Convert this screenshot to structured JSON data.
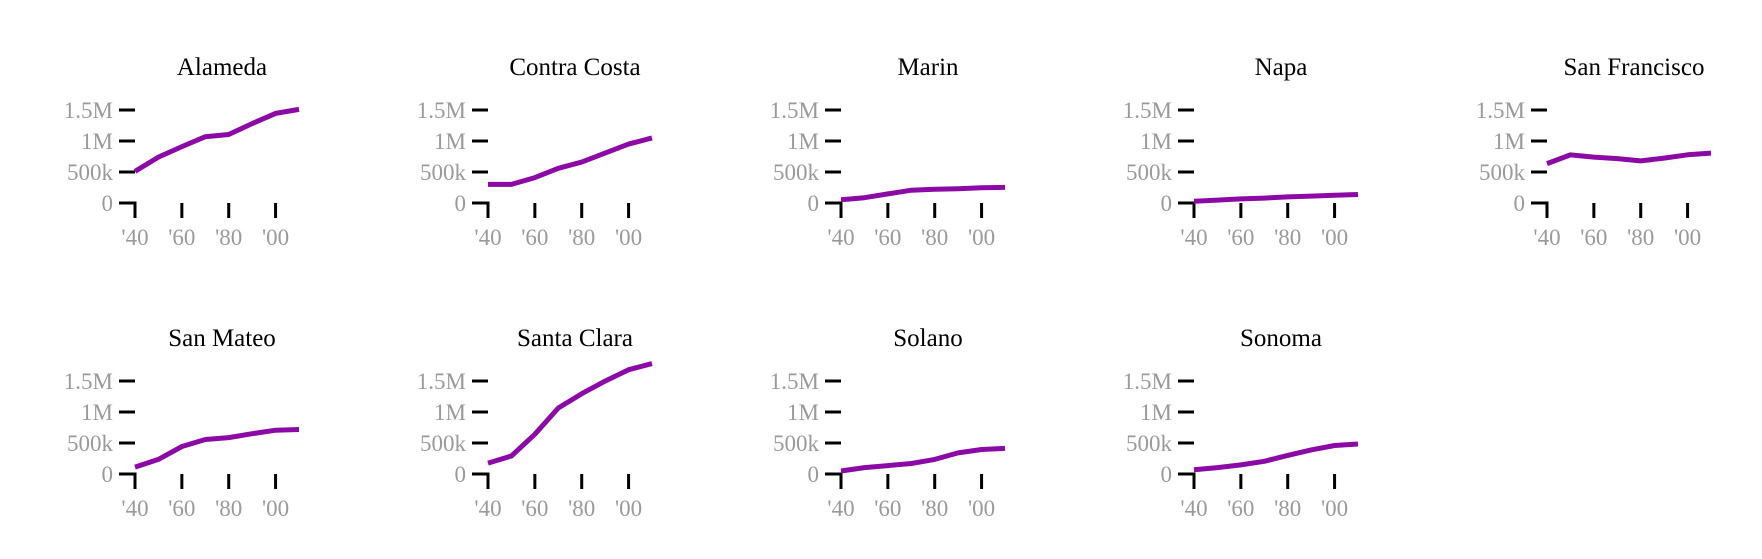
{
  "chart_data": {
    "type": "line",
    "style": "small-multiples",
    "line_color": "#8b0aa5",
    "tick_label_color": "#9a9a9a",
    "axis_color": "#000000",
    "grid": false,
    "legend": "none",
    "x": [
      1940,
      1950,
      1960,
      1970,
      1980,
      1990,
      2000,
      2010
    ],
    "xlim": [
      1940,
      2010
    ],
    "ylim": [
      0,
      1500000
    ],
    "x_ticks": [
      1940,
      1960,
      1980,
      2000
    ],
    "x_tick_labels": [
      "'40",
      "'60",
      "'80",
      "'00"
    ],
    "y_ticks": [
      0,
      500000,
      1000000,
      1500000
    ],
    "y_tick_labels": [
      "0",
      "500k",
      "1M",
      "1.5M"
    ],
    "panels": [
      {
        "title": "Alameda",
        "values": [
          510000,
          740000,
          910000,
          1070000,
          1105000,
          1280000,
          1445000,
          1510000
        ]
      },
      {
        "title": "Contra Costa",
        "values": [
          300000,
          300000,
          410000,
          560000,
          660000,
          805000,
          950000,
          1050000
        ]
      },
      {
        "title": "Marin",
        "values": [
          52000,
          86000,
          147000,
          206000,
          222000,
          230000,
          247000,
          252000
        ]
      },
      {
        "title": "Napa",
        "values": [
          29000,
          46000,
          66000,
          79000,
          99000,
          111000,
          124000,
          137000
        ]
      },
      {
        "title": "San Francisco",
        "values": [
          635000,
          775000,
          740000,
          716000,
          679000,
          724000,
          777000,
          805000
        ]
      },
      {
        "title": "San Mateo",
        "values": [
          112000,
          236000,
          444000,
          557000,
          587000,
          650000,
          707000,
          718000
        ]
      },
      {
        "title": "Santa Clara",
        "values": [
          175000,
          290000,
          642000,
          1065000,
          1295000,
          1498000,
          1683000,
          1781000
        ]
      },
      {
        "title": "Solano",
        "values": [
          49000,
          104000,
          135000,
          170000,
          235000,
          340000,
          395000,
          413000
        ]
      },
      {
        "title": "Sonoma",
        "values": [
          69000,
          103000,
          147000,
          205000,
          300000,
          388000,
          459000,
          484000
        ]
      }
    ]
  }
}
